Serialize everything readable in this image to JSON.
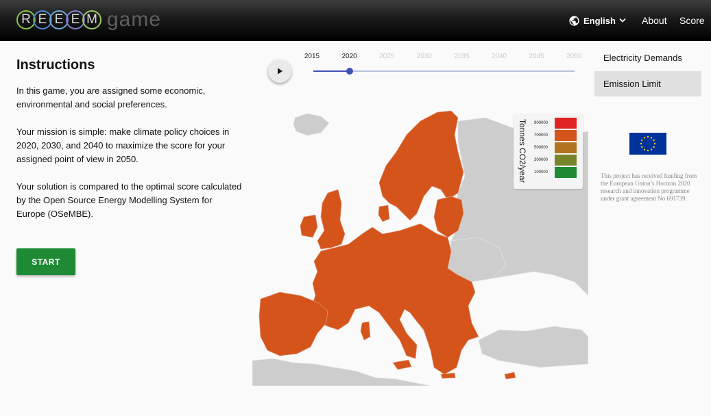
{
  "header": {
    "logo_letters": [
      "R",
      "E",
      "E",
      "E",
      "M"
    ],
    "logo_word": "game",
    "language": "English",
    "nav": {
      "about": "About",
      "score": "Score"
    }
  },
  "instructions": {
    "title": "Instructions",
    "paragraphs": [
      "In this game, you are assigned some economic, environmental and social preferences.",
      "Your mission is simple: make climate policy choices in 2020, 2030, and 2040 to maximize the score for your assigned point of view in 2050.",
      "Your solution is compared to the optimal score calculated by the Open Source Energy Modelling System for Europe (OSeMBE)."
    ],
    "start_label": "START"
  },
  "timeline": {
    "years": [
      "2015",
      "2020",
      "2025",
      "2030",
      "2035",
      "2040",
      "2045",
      "2050"
    ],
    "current": "2020"
  },
  "legend": {
    "title": "Tonnes CO2/year",
    "items": [
      {
        "value": "900000",
        "color": "#e02424"
      },
      {
        "value": "700000",
        "color": "#d4541c"
      },
      {
        "value": "500000",
        "color": "#b07420"
      },
      {
        "value": "300000",
        "color": "#78842a"
      },
      {
        "value": "100000",
        "color": "#1e8a34"
      }
    ]
  },
  "map_colors": {
    "selected": "#d4541c",
    "other": "#cdcdcd",
    "border": "#e0e0e0"
  },
  "side_menu": {
    "items": [
      "Electricity Demands",
      "Emission Limit"
    ],
    "active": "Emission Limit"
  },
  "funding_text": "This project has received funding from the European Union’s Horizon 2020 research and innovation programme under grant agreement No 691739."
}
